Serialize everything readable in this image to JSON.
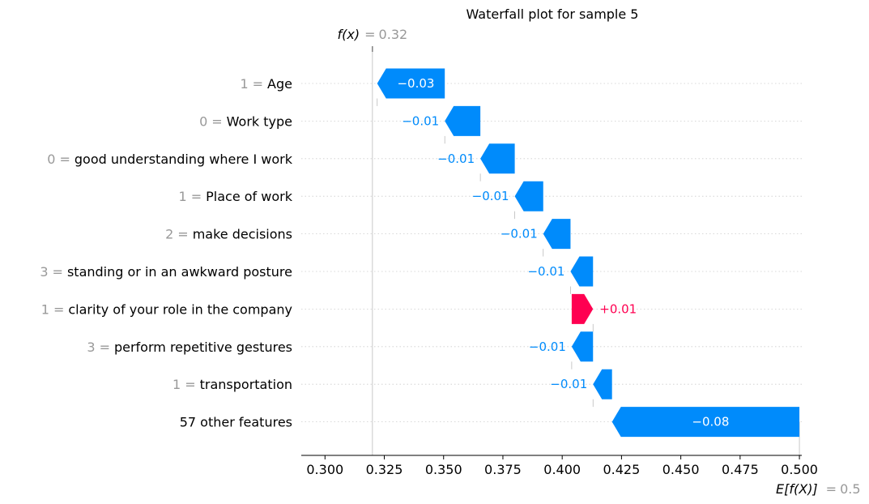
{
  "chart_data": {
    "type": "waterfall",
    "title": "Waterfall plot for sample 5",
    "fx": {
      "label": "f(x)",
      "eq": "=",
      "value_text": "0.32",
      "value": 0.32
    },
    "ex": {
      "label": "E[f(X)]",
      "eq": "=",
      "value_text": "0.5",
      "value": 0.5
    },
    "xlim": [
      0.29,
      0.501
    ],
    "ticks": [
      "0.300",
      "0.325",
      "0.350",
      "0.375",
      "0.400",
      "0.425",
      "0.450",
      "0.475",
      "0.500"
    ],
    "tick_values": [
      0.3,
      0.325,
      0.35,
      0.375,
      0.4,
      0.425,
      0.45,
      0.475,
      0.5
    ],
    "features": [
      {
        "value": "1",
        "eq": "=",
        "name": "Age",
        "start": 0.3505,
        "end": 0.322,
        "label": "−0.03",
        "label_inside": true
      },
      {
        "value": "0",
        "eq": "=",
        "name": "Work type",
        "start": 0.3655,
        "end": 0.3505,
        "label": "−0.01",
        "label_inside": false
      },
      {
        "value": "0",
        "eq": "=",
        "name": "good understanding where I work",
        "start": 0.38,
        "end": 0.3655,
        "label": "−0.01",
        "label_inside": false
      },
      {
        "value": "1",
        "eq": "=",
        "name": "Place of work",
        "start": 0.392,
        "end": 0.38,
        "label": "−0.01",
        "label_inside": false
      },
      {
        "value": "2",
        "eq": "=",
        "name": "make decisions",
        "start": 0.4035,
        "end": 0.392,
        "label": "−0.01",
        "label_inside": false
      },
      {
        "value": "3",
        "eq": "=",
        "name": "standing or in an awkward posture",
        "start": 0.413,
        "end": 0.4035,
        "label": "−0.01",
        "label_inside": false
      },
      {
        "value": "1",
        "eq": "=",
        "name": "clarity of your role in the company",
        "start": 0.404,
        "end": 0.413,
        "label": "+0.01",
        "label_inside": false
      },
      {
        "value": "3",
        "eq": "=",
        "name": "perform repetitive gestures",
        "start": 0.413,
        "end": 0.404,
        "label": "−0.01",
        "label_inside": false
      },
      {
        "value": "1",
        "eq": "=",
        "name": "transportation",
        "start": 0.421,
        "end": 0.413,
        "label": "−0.01",
        "label_inside": false
      },
      {
        "value": "",
        "eq": "",
        "name": "57 other features",
        "start": 0.5,
        "end": 0.421,
        "label": "−0.08",
        "label_inside": true
      }
    ],
    "colors": {
      "negative": "#008bfb",
      "positive": "#ff0051",
      "tick_gray": "#999999",
      "grid": "#cccccc"
    }
  }
}
